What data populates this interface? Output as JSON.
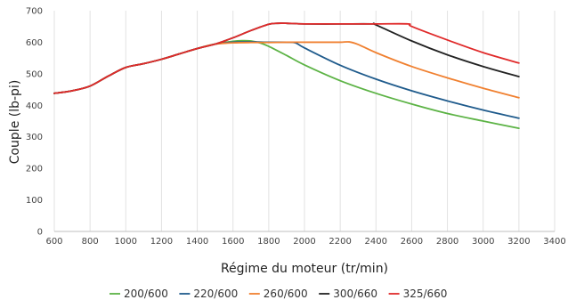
{
  "chart_data": {
    "type": "line",
    "title": "",
    "xlabel": "Régime du moteur (tr/min)",
    "ylabel": "Couple (lb-pi)",
    "xlim": [
      600,
      3400
    ],
    "ylim": [
      0,
      700
    ],
    "xticks": [
      600,
      800,
      1000,
      1200,
      1400,
      1600,
      1800,
      2000,
      2200,
      2400,
      2600,
      2800,
      3000,
      3200,
      3400
    ],
    "yticks": [
      0,
      100,
      200,
      300,
      400,
      500,
      600,
      700
    ],
    "grid": "vertical",
    "legend_position": "bottom",
    "series": [
      {
        "name": "200/600",
        "color": "#5cb345",
        "x": [
          600,
          700,
          800,
          900,
          1000,
          1100,
          1200,
          1300,
          1400,
          1500,
          1600,
          1650,
          1700,
          1750,
          1800,
          1900,
          2000,
          2200,
          2400,
          2600,
          2800,
          3000,
          3200
        ],
        "y": [
          438,
          446,
          461,
          492,
          520,
          532,
          546,
          563,
          580,
          594,
          603,
          605,
          604,
          598,
          587,
          558,
          528,
          478,
          438,
          404,
          374,
          350,
          327
        ]
      },
      {
        "name": "220/600",
        "color": "#1f5b8c",
        "x": [
          600,
          700,
          800,
          900,
          1000,
          1100,
          1200,
          1300,
          1400,
          1500,
          1600,
          1700,
          1800,
          1900,
          1950,
          2000,
          2200,
          2400,
          2600,
          2800,
          3000,
          3200
        ],
        "y": [
          438,
          446,
          461,
          492,
          520,
          532,
          546,
          563,
          580,
          594,
          600,
          601,
          600,
          600,
          598,
          582,
          527,
          483,
          446,
          414,
          385,
          359
        ]
      },
      {
        "name": "260/600",
        "color": "#f08030",
        "x": [
          600,
          700,
          800,
          900,
          1000,
          1100,
          1200,
          1300,
          1400,
          1500,
          1600,
          1700,
          1800,
          1900,
          2000,
          2100,
          2200,
          2250,
          2300,
          2400,
          2600,
          2800,
          3000,
          3200
        ],
        "y": [
          438,
          446,
          461,
          492,
          520,
          532,
          546,
          563,
          580,
          594,
          598,
          599,
          599,
          600,
          600,
          600,
          600,
          601,
          593,
          567,
          523,
          487,
          454,
          424
        ]
      },
      {
        "name": "300/660",
        "color": "#222222",
        "x": [
          600,
          700,
          800,
          900,
          1000,
          1100,
          1200,
          1300,
          1400,
          1500,
          1600,
          1700,
          1800,
          1850,
          1900,
          2000,
          2200,
          2380,
          2400,
          2600,
          2800,
          3000,
          3200
        ],
        "y": [
          438,
          446,
          461,
          492,
          520,
          532,
          546,
          563,
          580,
          594,
          614,
          637,
          657,
          660,
          660,
          658,
          658,
          658,
          655,
          604,
          560,
          523,
          491
        ]
      },
      {
        "name": "325/660",
        "color": "#e02a2a",
        "x": [
          600,
          700,
          800,
          900,
          1000,
          1100,
          1200,
          1300,
          1400,
          1500,
          1600,
          1700,
          1800,
          1850,
          1900,
          2000,
          2200,
          2400,
          2580,
          2600,
          2800,
          3000,
          3200
        ],
        "y": [
          438,
          446,
          461,
          492,
          520,
          532,
          546,
          563,
          580,
          594,
          614,
          637,
          657,
          660,
          660,
          658,
          658,
          658,
          658,
          650,
          607,
          567,
          534
        ]
      }
    ]
  }
}
